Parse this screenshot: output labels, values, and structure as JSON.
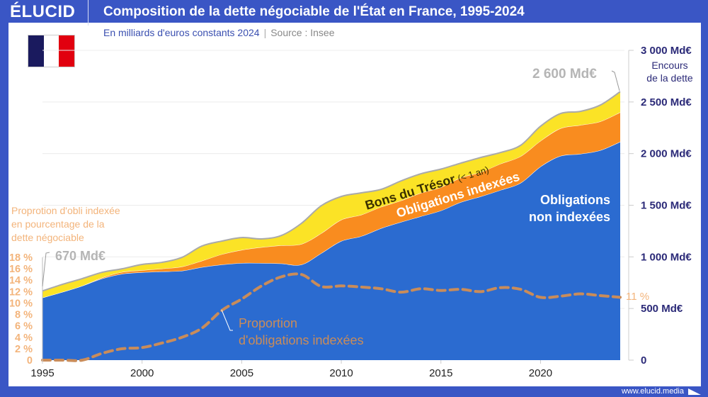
{
  "header": {
    "logo": "ÉLUCID",
    "title": "Composition de la dette négociable de l'État en France, 1995-2024",
    "subtitle": "En milliards d'euros constants 2024",
    "source": "Source : Insee"
  },
  "footer": {
    "url": "www.elucid.media"
  },
  "flag": {
    "colors": [
      "#1a1a5e",
      "#ffffff",
      "#e1000f"
    ]
  },
  "colors": {
    "non_indexed": "#2b6bd0",
    "indexed": "#f98c1f",
    "bons": "#fbe326",
    "proportion": "#c98c5a",
    "right_axis": "#2b2a78",
    "left_axis": "#f3b47b",
    "frame": "#3a56c5"
  },
  "chart_data": {
    "type": "area",
    "stacked": true,
    "title": "Composition de la dette négociable de l'État en France, 1995-2024",
    "x": [
      1995,
      1996,
      1997,
      1998,
      1999,
      2000,
      2001,
      2002,
      2003,
      2004,
      2005,
      2006,
      2007,
      2008,
      2009,
      2010,
      2011,
      2012,
      2013,
      2014,
      2015,
      2016,
      2017,
      2018,
      2019,
      2020,
      2021,
      2022,
      2023,
      2024
    ],
    "series": [
      {
        "name": "Obligations non indexées",
        "values": [
          605,
          660,
          720,
          790,
          835,
          850,
          858,
          865,
          900,
          925,
          940,
          940,
          935,
          925,
          1036,
          1153,
          1200,
          1277,
          1338,
          1393,
          1448,
          1530,
          1585,
          1647,
          1716,
          1874,
          1977,
          1997,
          2032,
          2114
        ]
      },
      {
        "name": "Obligations indexées",
        "values": [
          0,
          0,
          0,
          10,
          18,
          20,
          28,
          40,
          62,
          100,
          127,
          153,
          176,
          199,
          193,
          206,
          207,
          207,
          207,
          226,
          226,
          237,
          236,
          255,
          258,
          249,
          267,
          279,
          279,
          286
        ]
      },
      {
        "name": "Bons du Trésor",
        "name_suffix": "(< 1 an)",
        "values": [
          65,
          74,
          70,
          51,
          32,
          57,
          61,
          90,
          143,
          128,
          120,
          81,
          97,
          201,
          267,
          226,
          213,
          170,
          191,
          186,
          176,
          141,
          142,
          109,
          106,
          142,
          144,
          133,
          159,
          200
        ]
      }
    ],
    "proportion_series": {
      "name": "Proportion d'obligations indexées",
      "unit": "%",
      "values": [
        0,
        0,
        0,
        1.2,
        2,
        2.2,
        3,
        4,
        5.6,
        8.7,
        10.7,
        13,
        14.6,
        15,
        12.9,
        13,
        12.8,
        12.5,
        11.9,
        12.5,
        12.2,
        12.4,
        12,
        12.7,
        12.4,
        11,
        11.2,
        11.6,
        11.3,
        11
      ]
    },
    "xlim": [
      1995,
      2024
    ],
    "x_ticks": [
      "1995",
      "2000",
      "2005",
      "2010",
      "2015",
      "2020"
    ],
    "ylim": [
      0,
      3000
    ],
    "y_ticks": [
      "0",
      "500 Md€",
      "1 000 Md€",
      "1 500 Md€",
      "2 000 Md€",
      "2 500 Md€",
      "3 000 Md€"
    ],
    "y_tick_values": [
      0,
      500,
      1000,
      1500,
      2000,
      2500,
      3000
    ],
    "ylabel": [
      "Encours",
      "de la dette"
    ],
    "y2lim": [
      0,
      18
    ],
    "y2_ticks": [
      "0",
      "2 %",
      "4 %",
      "6 %",
      "8 %",
      "10 %",
      "12 %",
      "14 %",
      "16 %",
      "18 %"
    ],
    "y2label": [
      "Proprotion d'obli indexée",
      "en pourcentage de la",
      "dette négociable"
    ],
    "grid": true,
    "annotations": {
      "start": "670 Md€",
      "end": "2 600 Md€",
      "end_pct": "11 %",
      "non_indexed_label": [
        "Obligations",
        "non indexées"
      ],
      "indexed_label": "Obligations indexées",
      "bons_label": "Bons du Trésor",
      "bons_suffix": "(< 1 an)",
      "proportion_label": [
        "Proportion",
        "d'obligations indexées"
      ]
    }
  }
}
